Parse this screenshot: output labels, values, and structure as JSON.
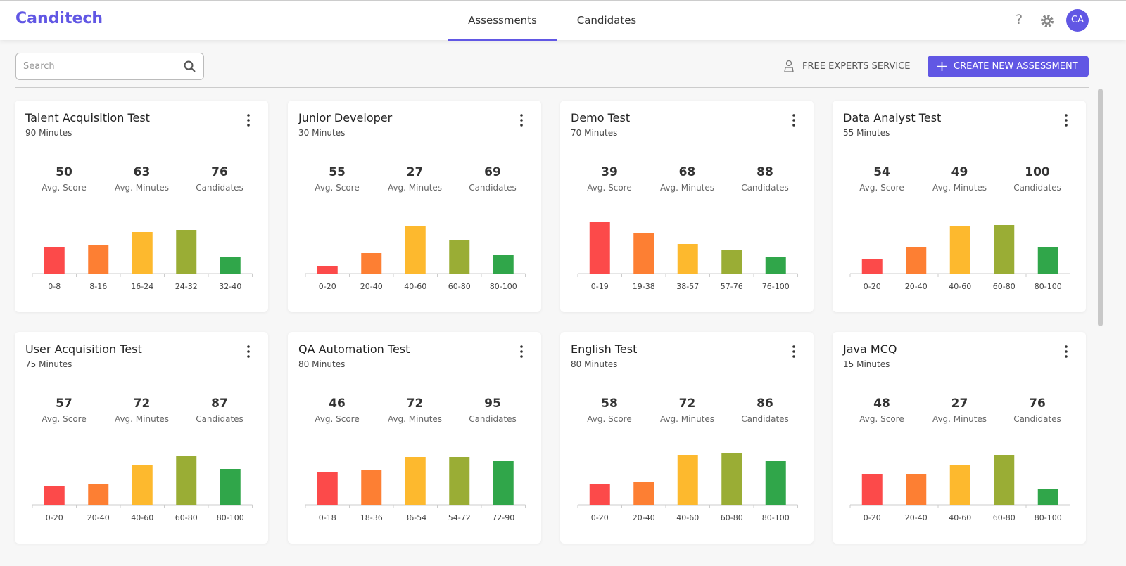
{
  "header": {
    "logo": "Canditech",
    "tabs": [
      "Assessments",
      "Candidates"
    ],
    "avatar": "CA"
  },
  "toolbar": {
    "search": "Search",
    "experts": "FREE EXPERTS SERVICE",
    "create": "CREATE NEW ASSESSMENT"
  },
  "bar_colors": [
    "#fc4a4a",
    "#fd7f33",
    "#fdb92e",
    "#9aad35",
    "#30a64a"
  ],
  "assessments": [
    {
      "title": "Talent Acquisition Test",
      "duration": "90 Minutes",
      "stats": [
        {
          "value": 50,
          "label": "Avg. Score"
        },
        {
          "value": 63,
          "label": "Avg. Minutes"
        },
        {
          "value": 76,
          "label": "Candidates"
        }
      ],
      "chart": {
        "type": "bar",
        "categories": [
          "0-8",
          "8-16",
          "16-24",
          "24-32",
          "32-40"
        ],
        "values": [
          38,
          41,
          59,
          62,
          23
        ]
      }
    },
    {
      "title": "Junior Developer",
      "duration": "30 Minutes",
      "stats": [
        {
          "value": 55,
          "label": "Avg. Score"
        },
        {
          "value": 27,
          "label": "Avg. Minutes"
        },
        {
          "value": 69,
          "label": "Candidates"
        }
      ],
      "chart": {
        "type": "bar",
        "categories": [
          "0-20",
          "20-40",
          "40-60",
          "60-80",
          "80-100"
        ],
        "values": [
          10,
          29,
          68,
          47,
          26
        ]
      }
    },
    {
      "title": "Demo Test",
      "duration": "70 Minutes",
      "stats": [
        {
          "value": 39,
          "label": "Avg. Score"
        },
        {
          "value": 68,
          "label": "Avg. Minutes"
        },
        {
          "value": 88,
          "label": "Candidates"
        }
      ],
      "chart": {
        "type": "bar",
        "categories": [
          "0-19",
          "19-38",
          "38-57",
          "57-76",
          "76-100"
        ],
        "values": [
          73,
          58,
          42,
          34,
          23
        ]
      }
    },
    {
      "title": "Data Analyst Test",
      "duration": "55 Minutes",
      "stats": [
        {
          "value": 54,
          "label": "Avg. Score"
        },
        {
          "value": 49,
          "label": "Avg. Minutes"
        },
        {
          "value": 100,
          "label": "Candidates"
        }
      ],
      "chart": {
        "type": "bar",
        "categories": [
          "0-20",
          "20-40",
          "40-60",
          "60-80",
          "80-100"
        ],
        "values": [
          21,
          37,
          67,
          69,
          37
        ]
      }
    },
    {
      "title": "User Acquisition Test",
      "duration": "75 Minutes",
      "stats": [
        {
          "value": 57,
          "label": "Avg. Score"
        },
        {
          "value": 72,
          "label": "Avg. Minutes"
        },
        {
          "value": 87,
          "label": "Candidates"
        }
      ],
      "chart": {
        "type": "bar",
        "categories": [
          "0-20",
          "20-40",
          "40-60",
          "60-80",
          "80-100"
        ],
        "values": [
          27,
          30,
          56,
          69,
          51
        ]
      }
    },
    {
      "title": "QA Automation Test",
      "duration": "80 Minutes",
      "stats": [
        {
          "value": 46,
          "label": "Avg. Score"
        },
        {
          "value": 72,
          "label": "Avg. Minutes"
        },
        {
          "value": 95,
          "label": "Candidates"
        }
      ],
      "chart": {
        "type": "bar",
        "categories": [
          "0-18",
          "18-36",
          "36-54",
          "54-72",
          "72-90"
        ],
        "values": [
          47,
          50,
          68,
          68,
          62
        ]
      }
    },
    {
      "title": "English Test",
      "duration": "80 Minutes",
      "stats": [
        {
          "value": 58,
          "label": "Avg. Score"
        },
        {
          "value": 72,
          "label": "Avg. Minutes"
        },
        {
          "value": 86,
          "label": "Candidates"
        }
      ],
      "chart": {
        "type": "bar",
        "categories": [
          "0-20",
          "20-40",
          "40-60",
          "60-80",
          "80-100"
        ],
        "values": [
          29,
          32,
          71,
          74,
          62
        ]
      }
    },
    {
      "title": "Java MCQ",
      "duration": "15 Minutes",
      "stats": [
        {
          "value": 48,
          "label": "Avg. Score"
        },
        {
          "value": 27,
          "label": "Avg. Minutes"
        },
        {
          "value": 76,
          "label": "Candidates"
        }
      ],
      "chart": {
        "type": "bar",
        "categories": [
          "0-20",
          "20-40",
          "40-60",
          "60-80",
          "80-100"
        ],
        "values": [
          44,
          44,
          56,
          71,
          22
        ]
      }
    }
  ]
}
